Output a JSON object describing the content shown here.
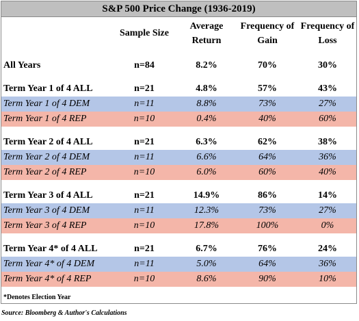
{
  "title": "S&P 500 Price Change (1936-2019)",
  "headers": [
    "Sample Size",
    "Average Return",
    "Frequency of Gain",
    "Frequency of Loss"
  ],
  "rows": [
    {
      "kind": "all",
      "label": "All Years",
      "n": "n=84",
      "avg": "8.2%",
      "gain": "70%",
      "loss": "30%"
    },
    {
      "kind": "all",
      "label": "Term Year 1 of 4 ALL",
      "n": "n=21",
      "avg": "4.8%",
      "gain": "57%",
      "loss": "43%"
    },
    {
      "kind": "dem",
      "label": "Term Year 1 of 4 DEM",
      "n": "n=11",
      "avg": "8.8%",
      "gain": "73%",
      "loss": "27%"
    },
    {
      "kind": "rep",
      "label": "Term Year 1 of 4 REP",
      "n": "n=10",
      "avg": "0.4%",
      "gain": "40%",
      "loss": "60%"
    },
    {
      "kind": "all",
      "label": "Term Year 2 of 4 ALL",
      "n": "n=21",
      "avg": "6.3%",
      "gain": "62%",
      "loss": "38%"
    },
    {
      "kind": "dem",
      "label": "Term Year 2 of 4 DEM",
      "n": "n=11",
      "avg": "6.6%",
      "gain": "64%",
      "loss": "36%"
    },
    {
      "kind": "rep",
      "label": "Term Year 2 of 4 REP",
      "n": "n=10",
      "avg": "6.0%",
      "gain": "60%",
      "loss": "40%"
    },
    {
      "kind": "all",
      "label": "Term Year 3 of 4 ALL",
      "n": "n=21",
      "avg": "14.9%",
      "gain": "86%",
      "loss": "14%"
    },
    {
      "kind": "dem",
      "label": "Term Year 3 of 4 DEM",
      "n": "n=11",
      "avg": "12.3%",
      "gain": "73%",
      "loss": "27%"
    },
    {
      "kind": "rep",
      "label": "Term Year 3 of 4 REP",
      "n": "n=10",
      "avg": "17.8%",
      "gain": "100%",
      "loss": "0%"
    },
    {
      "kind": "all",
      "label": "Term Year 4* of 4 ALL",
      "n": "n=21",
      "avg": "6.7%",
      "gain": "76%",
      "loss": "24%"
    },
    {
      "kind": "dem",
      "label": "Term Year 4* of 4 DEM",
      "n": "n=11",
      "avg": "5.0%",
      "gain": "64%",
      "loss": "36%"
    },
    {
      "kind": "rep",
      "label": "Term Year 4* of 4 REP",
      "n": "n=10",
      "avg": "8.6%",
      "gain": "90%",
      "loss": "10%"
    }
  ],
  "footnote": "*Denotes Election Year",
  "source": "Source: Bloomberg & Author's Calculations",
  "colors": {
    "title_bg": "#bfbfbf",
    "dem_bg": "#b4c6e7",
    "rep_bg": "#f4b6a9"
  }
}
